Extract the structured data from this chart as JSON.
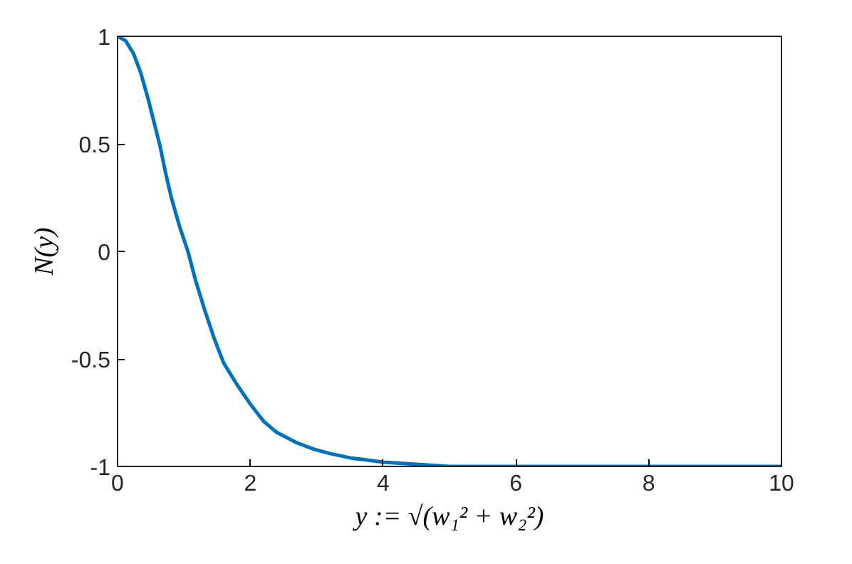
{
  "chart_data": {
    "type": "line",
    "xlabel": "y := √(w₁² + w₂²)",
    "ylabel": "N(y)",
    "x": [
      0,
      0.12,
      0.24,
      0.35,
      0.46,
      0.55,
      0.64,
      0.72,
      0.81,
      0.93,
      1.06,
      1.18,
      1.31,
      1.45,
      1.6,
      1.8,
      2.0,
      2.2,
      2.39,
      2.7,
      2.96,
      3.2,
      3.5,
      4.0,
      4.5,
      5.0,
      6.0,
      7.0,
      8.0,
      9.0,
      10.0
    ],
    "series": [
      {
        "color": "#0072bd",
        "values": [
          1,
          0.98,
          0.92,
          0.83,
          0.71,
          0.6,
          0.49,
          0.37,
          0.25,
          0.12,
          0,
          -0.14,
          -0.27,
          -0.4,
          -0.52,
          -0.62,
          -0.71,
          -0.79,
          -0.84,
          -0.89,
          -0.92,
          -0.94,
          -0.96,
          -0.98,
          -0.99,
          -1,
          -1,
          -1,
          -1,
          -1,
          -1
        ]
      }
    ],
    "xlim": [
      0,
      10
    ],
    "ylim": [
      -1,
      1
    ],
    "xticks": [
      0,
      2,
      4,
      6,
      8,
      10
    ],
    "yticks": [
      -1,
      -0.5,
      0,
      0.5,
      1
    ],
    "grid": false
  }
}
